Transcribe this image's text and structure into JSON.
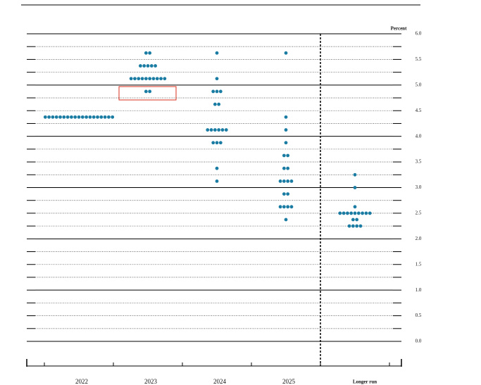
{
  "chart_data": {
    "type": "dot",
    "y_axis_label": "Percent",
    "categories": [
      "2022",
      "2023",
      "2024",
      "2025",
      "Longer run"
    ],
    "color": "#1b7ca3",
    "ylim": [
      0,
      6
    ],
    "yticks": [
      {
        "value": 6,
        "label": "6.0"
      },
      {
        "value": 5.5,
        "label": "5.5"
      },
      {
        "value": 5,
        "label": "5.0"
      },
      {
        "value": 4.5,
        "label": "4.5"
      },
      {
        "value": 4,
        "label": "4.0"
      },
      {
        "value": 3.5,
        "label": "3.5"
      },
      {
        "value": 3,
        "label": "3.0"
      },
      {
        "value": 2.5,
        "label": "2.5"
      },
      {
        "value": 2,
        "label": "2.0"
      },
      {
        "value": 1.5,
        "label": "1.5"
      },
      {
        "value": 1,
        "label": "1.0"
      },
      {
        "value": 0.5,
        "label": "0.5"
      },
      {
        "value": 0,
        "label": "0.0"
      }
    ],
    "yminor_ticks": [
      5.75,
      5.25,
      4.75,
      4.25,
      3.75,
      3.25,
      2.75,
      2.25,
      1.75,
      1.25,
      0.75,
      0.25
    ],
    "dots": [
      [
        {
          "value": 4.375,
          "count": 19
        }
      ],
      [
        {
          "value": 5.625,
          "count": 2
        },
        {
          "value": 5.375,
          "count": 5
        },
        {
          "value": 5.125,
          "count": 10
        },
        {
          "value": 4.875,
          "count": 2
        }
      ],
      [
        {
          "value": 5.625,
          "count": 1
        },
        {
          "value": 5.125,
          "count": 1
        },
        {
          "value": 4.875,
          "count": 3
        },
        {
          "value": 4.625,
          "count": 2
        },
        {
          "value": 4.125,
          "count": 6
        },
        {
          "value": 3.875,
          "count": 3
        },
        {
          "value": 3.375,
          "count": 1
        },
        {
          "value": 3.125,
          "count": 1
        }
      ],
      [
        {
          "value": 5.625,
          "count": 1
        },
        {
          "value": 4.375,
          "count": 1
        },
        {
          "value": 4.125,
          "count": 1
        },
        {
          "value": 3.875,
          "count": 1
        },
        {
          "value": 3.625,
          "count": 2
        },
        {
          "value": 3.375,
          "count": 2
        },
        {
          "value": 3.125,
          "count": 4
        },
        {
          "value": 2.875,
          "count": 2
        },
        {
          "value": 2.625,
          "count": 4
        },
        {
          "value": 2.375,
          "count": 1
        }
      ],
      [
        {
          "value": 3.25,
          "count": 1
        },
        {
          "value": 3.0,
          "count": 1
        },
        {
          "value": 2.625,
          "count": 1
        },
        {
          "value": 2.5,
          "count": 9
        },
        {
          "value": 2.375,
          "count": 2
        },
        {
          "value": 2.25,
          "count": 4
        }
      ]
    ]
  }
}
